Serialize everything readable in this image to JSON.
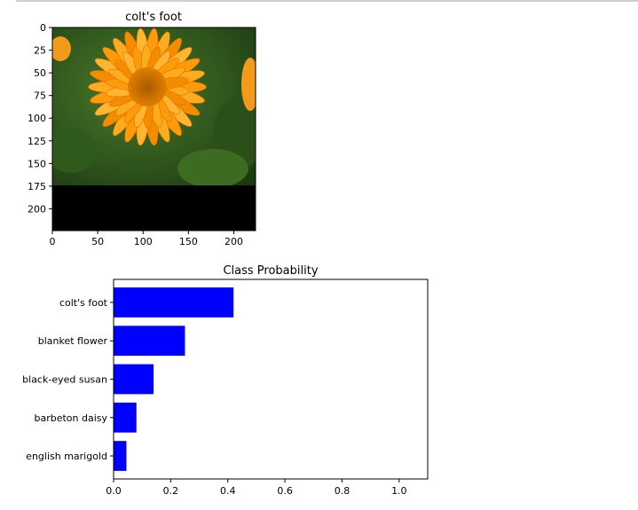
{
  "chart_data": [
    {
      "type": "image",
      "title": "colt's foot",
      "xticks": [
        "0",
        "50",
        "100",
        "150",
        "200"
      ],
      "yticks": [
        "0",
        "25",
        "50",
        "75",
        "100",
        "125",
        "150",
        "175",
        "200"
      ],
      "xlim": [
        0,
        224
      ],
      "ylim": [
        224,
        0
      ]
    },
    {
      "type": "bar",
      "orientation": "horizontal",
      "title": "Class Probability",
      "categories": [
        "colt's foot",
        "blanket flower",
        "black-eyed susan",
        "barbeton daisy",
        "english marigold"
      ],
      "values": [
        0.42,
        0.25,
        0.14,
        0.08,
        0.045
      ],
      "xlim": [
        0,
        1.1
      ],
      "xticks": [
        "0.0",
        "0.2",
        "0.4",
        "0.6",
        "0.8",
        "1.0"
      ],
      "bar_color": "#0000ff"
    }
  ]
}
